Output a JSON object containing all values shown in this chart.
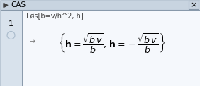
{
  "title": "CAS",
  "input_text": "Løs[b=v/h^2, h]",
  "row_number": "1",
  "arrow": "→",
  "bg_color_main": "#c8d4e0",
  "bg_color_panel": "#d8e2ec",
  "bg_color_content": "#f5f8fc",
  "border_color": "#8899aa",
  "title_bar_color": "#c8d4e0",
  "text_color": "#000000",
  "input_color": "#444444",
  "arrow_color": "#777777",
  "title_font_size": 7.5,
  "input_font_size": 7,
  "math_font_size": 9,
  "row_font_size": 8,
  "fig_width": 2.82,
  "fig_height": 1.22,
  "dpi": 100
}
